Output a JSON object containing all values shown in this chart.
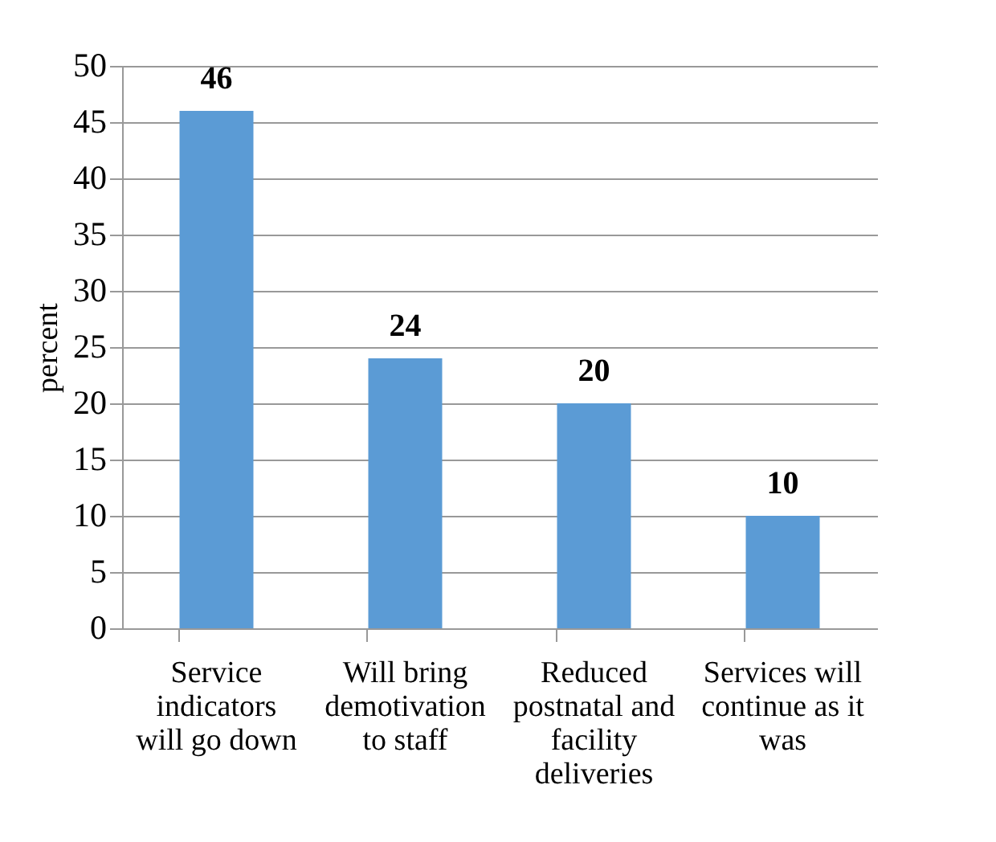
{
  "chart_data": {
    "type": "bar",
    "ylabel": "percent",
    "categories": [
      "Service indicators will go down",
      "Will bring demotivation to staff",
      "Reduced postnatal and facility deliveries",
      "Services will continue as it was"
    ],
    "values": [
      46,
      24,
      20,
      10
    ],
    "color": "#5b9bd5",
    "data_labels": true,
    "ylim": [
      0,
      50
    ],
    "yticks": [
      0,
      5,
      10,
      15,
      20,
      25,
      30,
      35,
      40,
      45,
      50
    ],
    "grid": true
  }
}
